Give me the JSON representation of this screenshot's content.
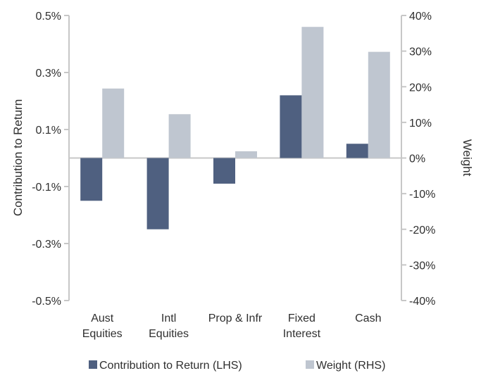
{
  "chart_data": {
    "type": "bar",
    "title": "",
    "categories": [
      [
        "Aust",
        "Equities"
      ],
      [
        "Intl",
        "Equities"
      ],
      [
        "Prop & Infr"
      ],
      [
        "Fixed",
        "Interest"
      ],
      [
        "Cash"
      ]
    ],
    "series": [
      {
        "name": "Contribution to Return (LHS)",
        "axis": "left",
        "color": "#4f6080",
        "values": [
          -0.15,
          -0.25,
          -0.09,
          0.22,
          0.05
        ]
      },
      {
        "name": "Weight (RHS)",
        "axis": "right",
        "color": "#bfc6d0",
        "values": [
          19.5,
          12.3,
          1.9,
          36.8,
          29.8
        ]
      }
    ],
    "y_left": {
      "label": "Contribution to Return",
      "lim": [
        -0.5,
        0.5
      ],
      "ticks": [
        0.5,
        0.3,
        0.1,
        -0.1,
        -0.3,
        -0.5
      ],
      "tick_labels": [
        "0.5%",
        "0.3%",
        "0.1%",
        "-0.1%",
        "-0.3%",
        "-0.5%"
      ]
    },
    "y_right": {
      "label": "Weight",
      "lim": [
        -40,
        40
      ],
      "ticks": [
        40,
        30,
        20,
        10,
        0,
        -10,
        -20,
        -30,
        -40
      ],
      "tick_labels": [
        "40%",
        "30%",
        "20%",
        "10%",
        "0%",
        "-10%",
        "-20%",
        "-30%",
        "-40%"
      ]
    },
    "legend_position": "bottom",
    "grid": false
  }
}
